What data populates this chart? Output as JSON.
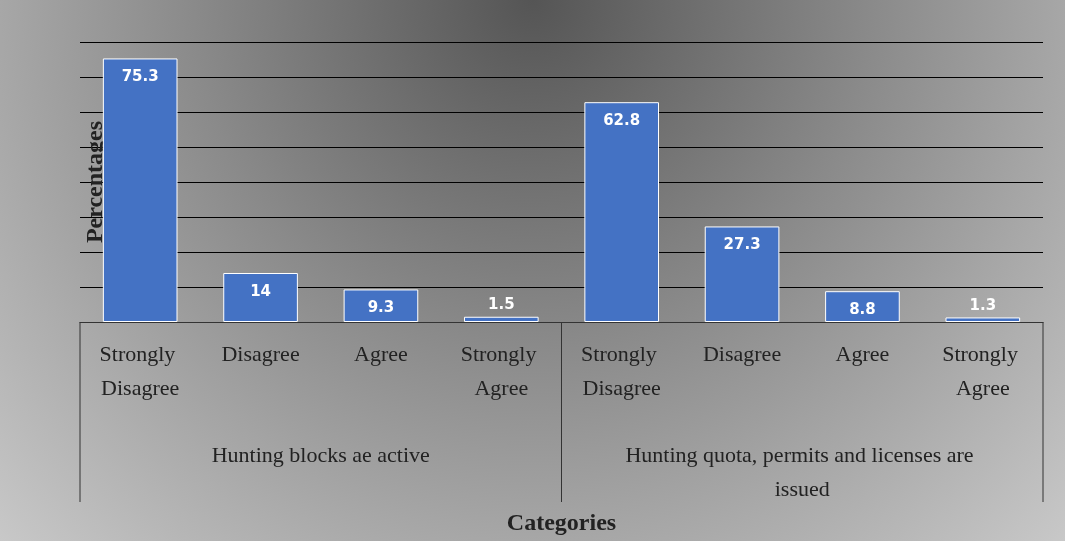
{
  "chart_data": {
    "type": "bar",
    "xlabel": "Categories",
    "ylabel": "Percentages",
    "categories": [
      "Strongly Disagree",
      "Disagree",
      "Agree",
      "Strongly Agree",
      "Strongly Disagree",
      "Disagree",
      "Agree",
      "Strongly Agree"
    ],
    "values": [
      75.3,
      14,
      9.3,
      1.5,
      62.8,
      27.3,
      8.8,
      1.3
    ],
    "color": "#4472c4",
    "data_labels": true,
    "annotations": [
      "Hunting blocks ae active",
      "Hunting quota, permits and licenses are issued"
    ],
    "ylim": [
      0,
      80
    ],
    "yticks": [
      {
        "value": 0,
        "label": null
      },
      {
        "value": 10,
        "label": null
      },
      {
        "value": 20,
        "label": null
      },
      {
        "value": 30,
        "label": null
      },
      {
        "value": 40,
        "label": null
      },
      {
        "value": 50,
        "label": null
      },
      {
        "value": 60,
        "label": null
      },
      {
        "value": 70,
        "label": null
      },
      {
        "value": 80,
        "label": null
      }
    ],
    "grid": "y",
    "tick_labels": "x"
  }
}
